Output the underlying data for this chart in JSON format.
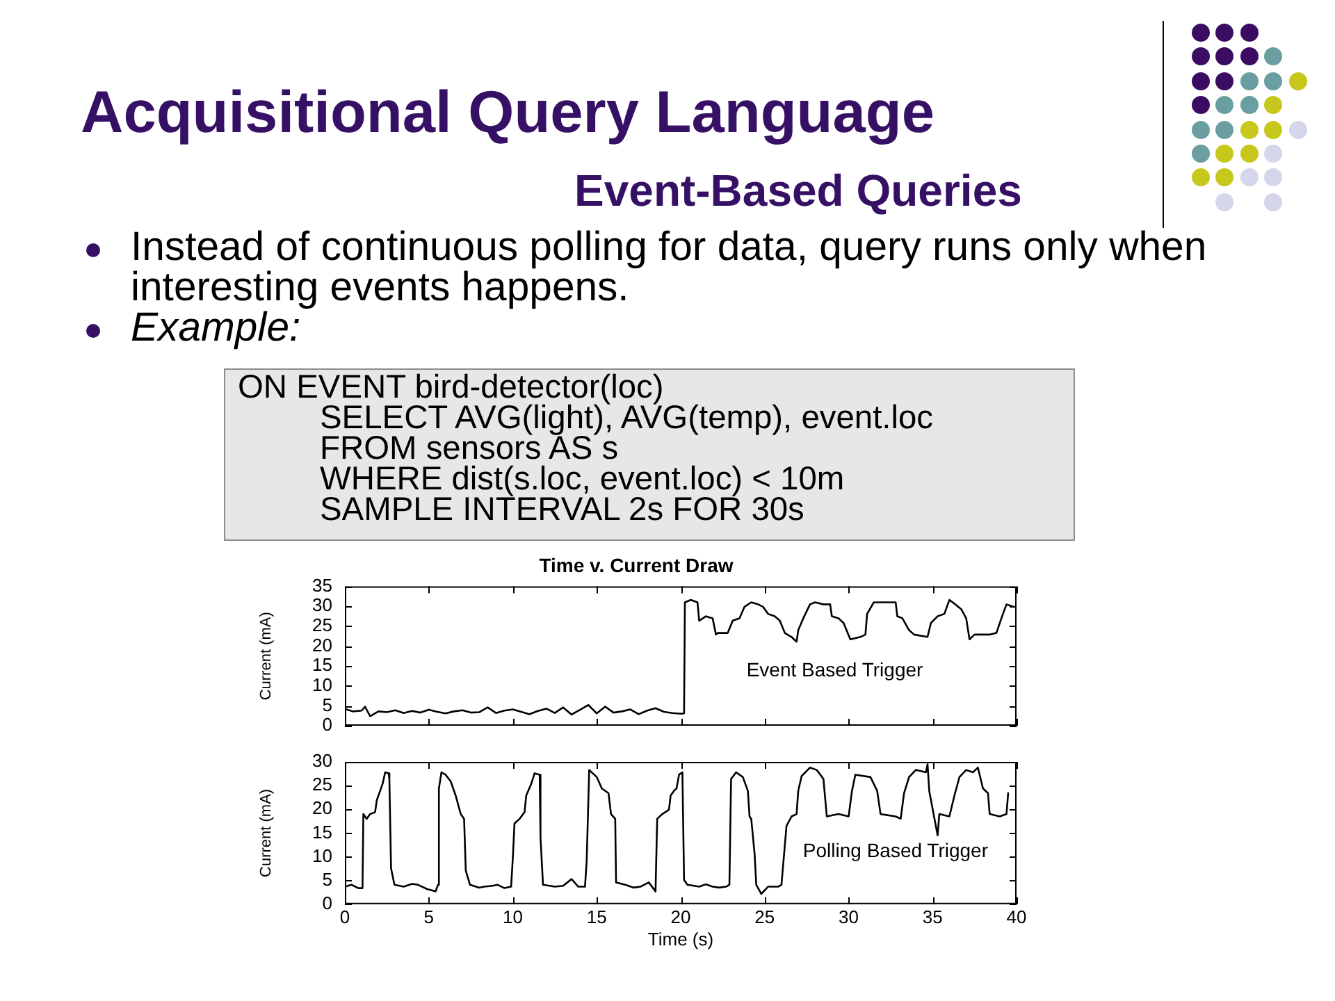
{
  "chart_data": [
    {
      "type": "line",
      "title": "Time v. Current Draw",
      "ylabel": "Current (mA)",
      "xlim": [
        0,
        40
      ],
      "xticks": [
        0,
        5,
        10,
        15,
        20,
        25,
        30,
        35,
        40
      ],
      "ylim": [
        0,
        35
      ],
      "yticks": [
        0,
        5,
        10,
        15,
        20,
        25,
        30,
        35
      ],
      "tick_labels": "y",
      "marker": "none",
      "series": [
        {
          "color": "#000000",
          "x": [
            0,
            0.5,
            1,
            1.2,
            1.5,
            2,
            2.5,
            3,
            3.5,
            4,
            4.5,
            5,
            5.5,
            6,
            6.5,
            7,
            7.5,
            8,
            8.5,
            9,
            9.5,
            10,
            10.5,
            11,
            11.5,
            12,
            12.5,
            13,
            13.5,
            14,
            14.5,
            15,
            15.5,
            16,
            16.5,
            17,
            17.5,
            18,
            18.5,
            19,
            19.5,
            20,
            20.2,
            20.25,
            20.6,
            21.0,
            21.1,
            21.5,
            21.9,
            22.1,
            22.2,
            22.8,
            23.1,
            23.5,
            23.8,
            24.2,
            24.6,
            24.9,
            25.2,
            25.6,
            25.9,
            26.2,
            26.6,
            26.9,
            27.0,
            27.3,
            27.7,
            28.0,
            28.5,
            28.9,
            29.0,
            29.4,
            29.7,
            30.1,
            30.7,
            31.0,
            31.1,
            31.5,
            31.9,
            32.8,
            32.9,
            33.2,
            33.6,
            33.9,
            34.7,
            34.9,
            35.3,
            35.7,
            36.0,
            36.2,
            36.7,
            37.0,
            37.2,
            37.5,
            38.4,
            38.8,
            39.1,
            39.4,
            39.8
          ],
          "values": [
            4.2,
            3.6,
            3.8,
            4.8,
            2.4,
            3.6,
            3.4,
            3.9,
            3.2,
            3.7,
            3.3,
            4.0,
            3.5,
            3.1,
            3.6,
            3.9,
            3.3,
            3.4,
            4.6,
            3.2,
            3.8,
            4.1,
            3.5,
            2.9,
            3.7,
            4.3,
            3.2,
            4.6,
            2.8,
            4.0,
            5.2,
            3.1,
            4.8,
            3.3,
            3.6,
            4.1,
            2.9,
            3.8,
            4.4,
            3.5,
            3.2,
            3.0,
            3.1,
            31,
            31.6,
            31,
            26.4,
            27.5,
            27,
            22.9,
            23.3,
            23.3,
            26.4,
            27,
            29.9,
            31,
            30.5,
            29.9,
            28.1,
            27.5,
            26.4,
            23.3,
            22.3,
            21.1,
            24,
            27,
            30.5,
            31,
            30.5,
            30.5,
            27.5,
            27,
            25.8,
            21.7,
            22.3,
            22.9,
            28.1,
            31,
            31,
            31,
            27.5,
            27,
            24,
            22.9,
            22.3,
            25.8,
            27.5,
            28.1,
            31.6,
            31,
            29.3,
            27,
            21.7,
            22.9,
            22.9,
            23.3,
            27,
            30.5,
            29.9
          ]
        }
      ],
      "annotations": [
        "Acquisitional Query Language",
        "Event-Based Queries",
        "Instead of continuous polling for data, query runs only when interesting events happens.",
        "Example:",
        "ON EVENT bird-detector(loc)",
        "SELECT AVG(light), AVG(temp), event.loc",
        "FROM sensors AS s",
        "WHERE dist(s.loc, event.loc) < 10m",
        "SAMPLE INTERVAL 2s FOR 30s",
        "Event Based Trigger"
      ]
    },
    {
      "type": "line",
      "xlabel": "Time (s)",
      "ylabel": "Current (mA)",
      "xlim": [
        0,
        40
      ],
      "xticks": [
        0,
        5,
        10,
        15,
        20,
        25,
        30,
        35,
        40
      ],
      "ylim": [
        0,
        30
      ],
      "yticks": [
        0,
        5,
        10,
        15,
        20,
        25,
        30
      ],
      "marker": "none",
      "series": [
        {
          "color": "#000000",
          "x": [
            0,
            0.4,
            0.8,
            1.05,
            1.1,
            1.3,
            1.5,
            1.8,
            1.9,
            2.1,
            2.25,
            2.4,
            2.6,
            2.65,
            2.75,
            2.95,
            3.5,
            4.0,
            4.35,
            4.9,
            5.4,
            5.55,
            5.6,
            5.75,
            6.0,
            6.3,
            6.6,
            6.9,
            7.1,
            7.2,
            7.45,
            8.0,
            8.3,
            8.8,
            9.1,
            9.5,
            9.9,
            10.0,
            10.1,
            10.4,
            10.7,
            10.8,
            11.1,
            11.3,
            11.6,
            11.65,
            11.8,
            12.5,
            13.0,
            13.5,
            13.9,
            14.3,
            14.4,
            14.55,
            15.0,
            15.3,
            15.7,
            15.85,
            16.1,
            16.15,
            16.7,
            17.2,
            17.6,
            18.1,
            18.5,
            18.6,
            18.9,
            19.3,
            19.4,
            19.6,
            19.75,
            19.9,
            20.1,
            20.2,
            20.4,
            21.1,
            21.5,
            21.9,
            22.3,
            22.7,
            22.9,
            23.0,
            23.3,
            23.7,
            24.0,
            24.1,
            24.2,
            24.4,
            24.5,
            24.8,
            25.2,
            25.8,
            26.0,
            26.3,
            26.6,
            26.9,
            27.0,
            27.2,
            27.7,
            28.1,
            28.5,
            28.7,
            29.4,
            30.0,
            30.2,
            30.4,
            31.3,
            31.7,
            31.9,
            32.8,
            33.1,
            33.3,
            33.6,
            34.0,
            34.6,
            34.7,
            34.8,
            35.3,
            35.4,
            36.0,
            36.3,
            36.6,
            37.0,
            37.4,
            37.7,
            38.0,
            38.3,
            38.4,
            39.0,
            39.4,
            39.5
          ],
          "values": [
            3.7,
            4.1,
            3.4,
            3.4,
            19,
            18,
            19,
            19.4,
            21.9,
            23.9,
            25.4,
            27.8,
            27.6,
            26.4,
            7.6,
            4.1,
            3.7,
            4.3,
            4.1,
            3.2,
            2.7,
            4.1,
            24.4,
            27.8,
            27.3,
            25.9,
            22.9,
            19,
            18,
            7.1,
            4.1,
            3.5,
            3.7,
            3.9,
            4.1,
            3.4,
            3.7,
            9.6,
            17,
            18,
            19.4,
            22.9,
            25.4,
            27.6,
            27.3,
            14,
            4.1,
            3.7,
            3.9,
            5.3,
            3.7,
            3.7,
            9.1,
            28.3,
            26.8,
            24.4,
            23.4,
            19,
            18,
            4.6,
            4.1,
            3.5,
            3.7,
            4.6,
            2.7,
            18,
            19,
            19.9,
            22.9,
            23.9,
            24.4,
            27.3,
            27.8,
            5.1,
            4.1,
            3.7,
            4.2,
            3.7,
            3.5,
            3.7,
            4.1,
            26.4,
            27.8,
            26.8,
            23.9,
            18.5,
            18,
            10.6,
            4.1,
            2.2,
            3.7,
            3.7,
            4.1,
            16.5,
            18.5,
            19,
            23.9,
            27,
            28.8,
            28.3,
            26.4,
            18.5,
            19,
            18.5,
            23.9,
            27.3,
            26.8,
            23.9,
            19,
            18.5,
            18,
            23.4,
            26.8,
            28.3,
            27.8,
            29.5,
            23.9,
            14.5,
            19,
            18.5,
            22.9,
            26.8,
            28.3,
            27.8,
            28.8,
            24.4,
            23.4,
            19,
            18.5,
            19,
            23.4
          ]
        }
      ],
      "annotations": [
        "Polling Based Trigger"
      ]
    }
  ]
}
